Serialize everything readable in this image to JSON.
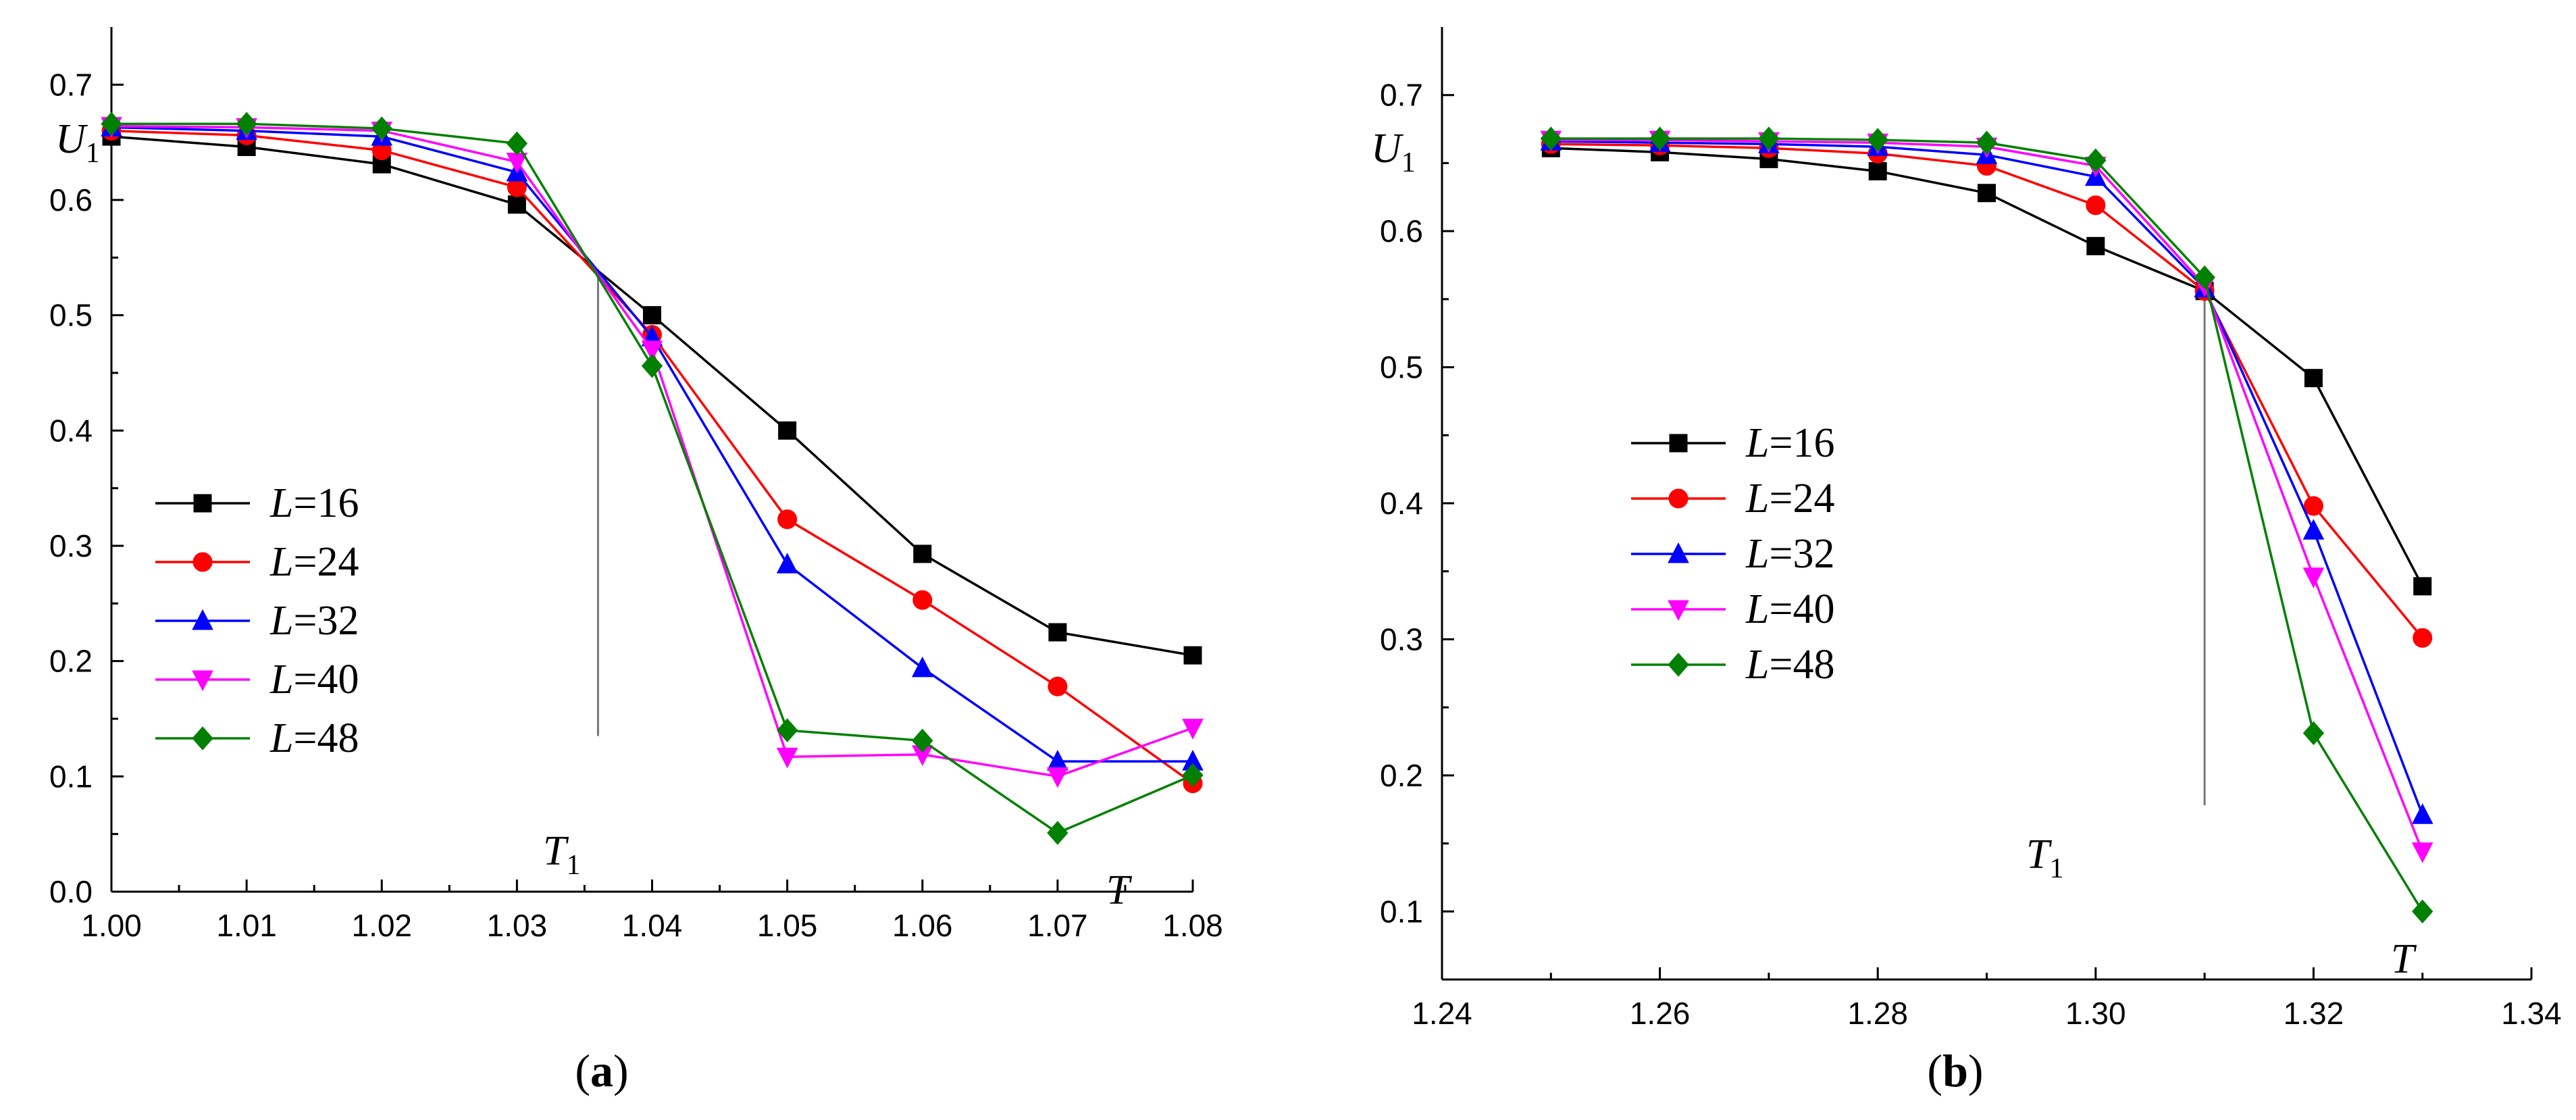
{
  "chart_data": [
    {
      "type": "line",
      "panel_label": "a",
      "caption": [
        "(",
        "a",
        ")"
      ],
      "ylabel": {
        "main": "U",
        "sub": "1"
      },
      "xlabel": "T",
      "critical": {
        "label_main": "T",
        "label_sub": "1",
        "x": 1.036,
        "y_from": 0.135,
        "y_to": 0.54
      },
      "xlim": [
        1.0,
        1.08
      ],
      "ylim": [
        0.0,
        0.75
      ],
      "xticks": [
        1.0,
        1.01,
        1.02,
        1.03,
        1.04,
        1.05,
        1.06,
        1.07,
        1.08
      ],
      "xtick_labels": [
        "1.00",
        "1.01",
        "1.02",
        "1.03",
        "1.04",
        "1.05",
        "1.06",
        "1.07",
        "1.08"
      ],
      "yticks": [
        0.0,
        0.1,
        0.2,
        0.3,
        0.4,
        0.5,
        0.6,
        0.7
      ],
      "ytick_labels": [
        "0.0",
        "0.1",
        "0.2",
        "0.3",
        "0.4",
        "0.5",
        "0.6",
        "0.7"
      ],
      "legend_position": "lower-left",
      "x": [
        1.0,
        1.01,
        1.02,
        1.03,
        1.04,
        1.05,
        1.06,
        1.07,
        1.08
      ],
      "series": [
        {
          "name": "L=16",
          "label_var": "L",
          "label_rest": "=16",
          "color": "#000000",
          "marker": "square",
          "values": [
            0.655,
            0.646,
            0.631,
            0.596,
            0.5,
            0.4,
            0.293,
            0.225,
            0.205
          ]
        },
        {
          "name": "L=24",
          "label_var": "L",
          "label_rest": "=24",
          "color": "#ff0000",
          "marker": "circle",
          "values": [
            0.66,
            0.656,
            0.643,
            0.611,
            0.483,
            0.323,
            0.253,
            0.178,
            0.094
          ]
        },
        {
          "name": "L=32",
          "label_var": "L",
          "label_rest": "=32",
          "color": "#0000ff",
          "marker": "triangle-up",
          "values": [
            0.663,
            0.66,
            0.655,
            0.624,
            0.481,
            0.284,
            0.194,
            0.113,
            0.113
          ]
        },
        {
          "name": "L=40",
          "label_var": "L",
          "label_rest": "=40",
          "color": "#ff00ff",
          "marker": "triangle-down",
          "values": [
            0.664,
            0.663,
            0.66,
            0.633,
            0.47,
            0.117,
            0.119,
            0.1,
            0.142
          ]
        },
        {
          "name": "L=48",
          "label_var": "L",
          "label_rest": "=48",
          "color": "#008000",
          "marker": "diamond",
          "values": [
            0.666,
            0.666,
            0.662,
            0.649,
            0.456,
            0.14,
            0.131,
            0.051,
            0.101
          ]
        }
      ]
    },
    {
      "type": "line",
      "panel_label": "b",
      "caption": [
        "(",
        "b",
        ")"
      ],
      "ylabel": {
        "main": "U",
        "sub": "1"
      },
      "xlabel": "T",
      "critical": {
        "label_main": "T",
        "label_sub": "1",
        "x": 1.31,
        "y_from": 0.178,
        "y_to": 0.556
      },
      "xlim": [
        1.24,
        1.34
      ],
      "ylim": [
        0.05,
        0.75
      ],
      "xticks": [
        1.24,
        1.26,
        1.28,
        1.3,
        1.32,
        1.34
      ],
      "xtick_labels": [
        "1.24",
        "1.26",
        "1.28",
        "1.30",
        "1.32",
        "1.34"
      ],
      "yticks": [
        0.1,
        0.2,
        0.3,
        0.4,
        0.5,
        0.6,
        0.7
      ],
      "ytick_labels": [
        "0.1",
        "0.2",
        "0.3",
        "0.4",
        "0.5",
        "0.6",
        "0.7"
      ],
      "legend_position": "center-left",
      "x": [
        1.25,
        1.26,
        1.27,
        1.28,
        1.29,
        1.3,
        1.31,
        1.32,
        1.33
      ],
      "series": [
        {
          "name": "L=16",
          "label_var": "L",
          "label_rest": "=16",
          "color": "#000000",
          "marker": "square",
          "values": [
            0.661,
            0.658,
            0.653,
            0.644,
            0.628,
            0.589,
            0.556,
            0.492,
            0.339
          ]
        },
        {
          "name": "L=24",
          "label_var": "L",
          "label_rest": "=24",
          "color": "#ff0000",
          "marker": "circle",
          "values": [
            0.664,
            0.663,
            0.661,
            0.657,
            0.648,
            0.619,
            0.556,
            0.398,
            0.301
          ]
        },
        {
          "name": "L=32",
          "label_var": "L",
          "label_rest": "=32",
          "color": "#0000ff",
          "marker": "triangle-up",
          "values": [
            0.666,
            0.665,
            0.664,
            0.662,
            0.656,
            0.64,
            0.558,
            0.38,
            0.171
          ]
        },
        {
          "name": "L=40",
          "label_var": "L",
          "label_rest": "=40",
          "color": "#ff00ff",
          "marker": "triangle-down",
          "values": [
            0.667,
            0.667,
            0.666,
            0.665,
            0.662,
            0.648,
            0.56,
            0.346,
            0.144
          ]
        },
        {
          "name": "L=48",
          "label_var": "L",
          "label_rest": "=48",
          "color": "#008000",
          "marker": "diamond",
          "values": [
            0.668,
            0.668,
            0.668,
            0.667,
            0.665,
            0.652,
            0.566,
            0.231,
            0.1
          ]
        }
      ]
    }
  ]
}
